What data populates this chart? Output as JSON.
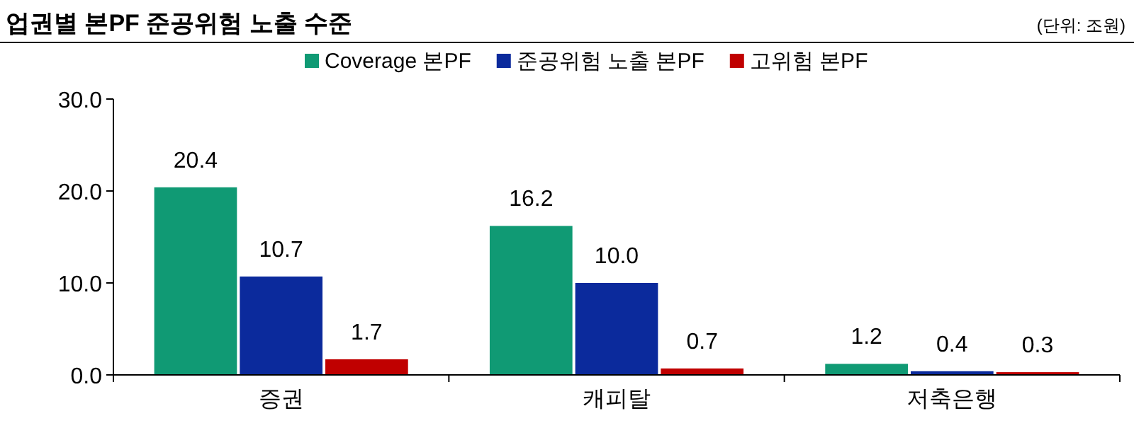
{
  "chart_data": {
    "type": "bar",
    "title": "업권별 본PF 준공위험 노출 수준",
    "annotations": [
      "(단위: 조원)"
    ],
    "categories": [
      "증권",
      "캐피탈",
      "저축은행"
    ],
    "series": [
      {
        "name": "Coverage 본PF",
        "color": "#109a74",
        "values": [
          20.4,
          16.2,
          1.2
        ],
        "value_labels": [
          "20.4",
          "16.2",
          "1.2"
        ]
      },
      {
        "name": "준공위험 노출 본PF",
        "color": "#0b2a9c",
        "values": [
          10.7,
          10.0,
          0.4
        ],
        "value_labels": [
          "10.7",
          "10.0",
          "0.4"
        ]
      },
      {
        "name": "고위험 본PF",
        "color": "#c00000",
        "values": [
          1.7,
          0.7,
          0.3
        ],
        "value_labels": [
          "1.7",
          "0.7",
          "0.3"
        ]
      }
    ],
    "ylim": [
      0,
      30
    ],
    "yticks": [
      {
        "value": 0,
        "label": "0.0"
      },
      {
        "value": 10,
        "label": "10.0"
      },
      {
        "value": 20,
        "label": "20.0"
      },
      {
        "value": 30,
        "label": "30.0"
      }
    ],
    "grid": false,
    "legend": "top"
  }
}
